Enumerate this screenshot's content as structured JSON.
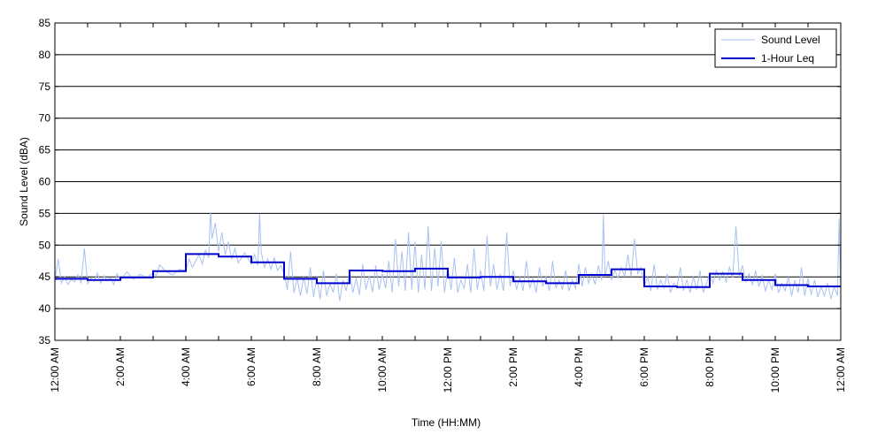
{
  "chart_data": {
    "type": "line",
    "title": "",
    "xlabel": "Time (HH:MM)",
    "ylabel": "Sound Level (dBA)",
    "xlim_hours": [
      0,
      24
    ],
    "ylim": [
      35,
      85
    ],
    "y_ticks": [
      35,
      40,
      45,
      50,
      55,
      60,
      65,
      70,
      75,
      80,
      85
    ],
    "x_ticks": [
      {
        "hour": 0,
        "label": "12:00 AM"
      },
      {
        "hour": 2,
        "label": "2:00 AM"
      },
      {
        "hour": 4,
        "label": "4:00 AM"
      },
      {
        "hour": 6,
        "label": "6:00 AM"
      },
      {
        "hour": 8,
        "label": "8:00 AM"
      },
      {
        "hour": 10,
        "label": "10:00 AM"
      },
      {
        "hour": 12,
        "label": "12:00 PM"
      },
      {
        "hour": 14,
        "label": "2:00 PM"
      },
      {
        "hour": 16,
        "label": "4:00 PM"
      },
      {
        "hour": 18,
        "label": "6:00 PM"
      },
      {
        "hour": 20,
        "label": "8:00 PM"
      },
      {
        "hour": 22,
        "label": "10:00 PM"
      },
      {
        "hour": 24,
        "label": "12:00 AM"
      }
    ],
    "minor_x_ticks_hours": [
      1,
      3,
      5,
      7,
      9,
      11,
      13,
      15,
      17,
      19,
      21,
      23
    ],
    "grid": "horizontal",
    "legend_position": "top-right",
    "series": [
      {
        "name": "Sound Level",
        "color": "#a9c1f2",
        "style": "thin",
        "points": [
          [
            0.0,
            44.5
          ],
          [
            0.1,
            47.8
          ],
          [
            0.2,
            44.0
          ],
          [
            0.3,
            45.0
          ],
          [
            0.4,
            43.8
          ],
          [
            0.5,
            44.6
          ],
          [
            0.6,
            44.2
          ],
          [
            0.7,
            45.3
          ],
          [
            0.8,
            44.0
          ],
          [
            0.9,
            49.5
          ],
          [
            1.0,
            43.9
          ],
          [
            1.1,
            44.8
          ],
          [
            1.2,
            44.3
          ],
          [
            1.3,
            45.6
          ],
          [
            1.4,
            44.0
          ],
          [
            1.5,
            45.2
          ],
          [
            1.6,
            44.4
          ],
          [
            1.7,
            44.9
          ],
          [
            1.8,
            43.8
          ],
          [
            1.9,
            45.5
          ],
          [
            2.0,
            44.5
          ],
          [
            2.2,
            45.8
          ],
          [
            2.4,
            44.6
          ],
          [
            2.6,
            45.4
          ],
          [
            2.8,
            44.9
          ],
          [
            3.0,
            45.6
          ],
          [
            3.1,
            45.2
          ],
          [
            3.2,
            46.9
          ],
          [
            3.4,
            45.8
          ],
          [
            3.6,
            45.3
          ],
          [
            3.8,
            46.2
          ],
          [
            4.0,
            46.0
          ],
          [
            4.1,
            47.8
          ],
          [
            4.2,
            46.5
          ],
          [
            4.4,
            48.5
          ],
          [
            4.5,
            47.0
          ],
          [
            4.6,
            49.2
          ],
          [
            4.7,
            48.0
          ],
          [
            4.75,
            55.2
          ],
          [
            4.8,
            51.0
          ],
          [
            4.9,
            53.5
          ],
          [
            5.0,
            49.0
          ],
          [
            5.1,
            52.0
          ],
          [
            5.2,
            48.5
          ],
          [
            5.3,
            50.5
          ],
          [
            5.4,
            47.8
          ],
          [
            5.5,
            49.5
          ],
          [
            5.6,
            47.2
          ],
          [
            5.8,
            48.8
          ],
          [
            6.0,
            47.0
          ],
          [
            6.1,
            48.5
          ],
          [
            6.2,
            46.8
          ],
          [
            6.25,
            54.9
          ],
          [
            6.3,
            49.0
          ],
          [
            6.4,
            46.5
          ],
          [
            6.5,
            47.8
          ],
          [
            6.6,
            46.2
          ],
          [
            6.7,
            48.0
          ],
          [
            6.8,
            46.0
          ],
          [
            6.9,
            46.8
          ],
          [
            7.0,
            45.5
          ],
          [
            7.1,
            43.0
          ],
          [
            7.2,
            49.0
          ],
          [
            7.3,
            42.5
          ],
          [
            7.4,
            44.8
          ],
          [
            7.5,
            42.0
          ],
          [
            7.6,
            45.0
          ],
          [
            7.7,
            42.3
          ],
          [
            7.8,
            46.5
          ],
          [
            7.9,
            41.8
          ],
          [
            8.0,
            45.0
          ],
          [
            8.1,
            41.5
          ],
          [
            8.2,
            46.0
          ],
          [
            8.3,
            42.0
          ],
          [
            8.4,
            44.0
          ],
          [
            8.5,
            42.5
          ],
          [
            8.6,
            45.5
          ],
          [
            8.7,
            41.2
          ],
          [
            8.8,
            44.5
          ],
          [
            8.9,
            42.8
          ],
          [
            9.0,
            46.0
          ],
          [
            9.1,
            42.5
          ],
          [
            9.2,
            44.8
          ],
          [
            9.3,
            42.2
          ],
          [
            9.4,
            47.0
          ],
          [
            9.5,
            43.0
          ],
          [
            9.6,
            45.2
          ],
          [
            9.7,
            42.6
          ],
          [
            9.8,
            46.8
          ],
          [
            9.9,
            43.0
          ],
          [
            10.0,
            45.5
          ],
          [
            10.1,
            43.2
          ],
          [
            10.2,
            47.5
          ],
          [
            10.3,
            42.5
          ],
          [
            10.4,
            51.0
          ],
          [
            10.5,
            43.5
          ],
          [
            10.6,
            49.0
          ],
          [
            10.7,
            42.8
          ],
          [
            10.8,
            52.0
          ],
          [
            10.9,
            43.0
          ],
          [
            11.0,
            50.5
          ],
          [
            11.1,
            42.5
          ],
          [
            11.2,
            48.5
          ],
          [
            11.3,
            43.0
          ],
          [
            11.4,
            53.0
          ],
          [
            11.5,
            42.8
          ],
          [
            11.6,
            49.5
          ],
          [
            11.7,
            43.5
          ],
          [
            11.8,
            50.5
          ],
          [
            11.9,
            42.5
          ],
          [
            12.0,
            46.5
          ],
          [
            12.1,
            43.0
          ],
          [
            12.2,
            48.0
          ],
          [
            12.3,
            42.5
          ],
          [
            12.4,
            44.5
          ],
          [
            12.5,
            43.2
          ],
          [
            12.6,
            47.0
          ],
          [
            12.7,
            42.5
          ],
          [
            12.8,
            49.5
          ],
          [
            12.9,
            43.0
          ],
          [
            13.0,
            46.0
          ],
          [
            13.1,
            42.8
          ],
          [
            13.2,
            51.5
          ],
          [
            13.3,
            43.5
          ],
          [
            13.4,
            47.0
          ],
          [
            13.5,
            43.0
          ],
          [
            13.6,
            45.5
          ],
          [
            13.7,
            42.8
          ],
          [
            13.8,
            52.0
          ],
          [
            13.9,
            43.5
          ],
          [
            14.0,
            46.0
          ],
          [
            14.1,
            43.0
          ],
          [
            14.2,
            45.0
          ],
          [
            14.3,
            42.8
          ],
          [
            14.4,
            47.5
          ],
          [
            14.5,
            43.2
          ],
          [
            14.6,
            44.8
          ],
          [
            14.7,
            42.5
          ],
          [
            14.8,
            46.5
          ],
          [
            14.9,
            43.5
          ],
          [
            15.0,
            45.0
          ],
          [
            15.1,
            42.8
          ],
          [
            15.2,
            47.5
          ],
          [
            15.3,
            43.2
          ],
          [
            15.4,
            44.5
          ],
          [
            15.5,
            43.0
          ],
          [
            15.6,
            46.0
          ],
          [
            15.7,
            42.8
          ],
          [
            15.8,
            44.5
          ],
          [
            15.9,
            43.2
          ],
          [
            16.0,
            47.0
          ],
          [
            16.1,
            43.5
          ],
          [
            16.2,
            46.5
          ],
          [
            16.3,
            44.0
          ],
          [
            16.4,
            45.5
          ],
          [
            16.5,
            43.8
          ],
          [
            16.6,
            46.8
          ],
          [
            16.7,
            44.5
          ],
          [
            16.75,
            54.8
          ],
          [
            16.8,
            45.0
          ],
          [
            16.9,
            47.5
          ],
          [
            17.0,
            44.5
          ],
          [
            17.1,
            46.0
          ],
          [
            17.2,
            44.8
          ],
          [
            17.3,
            46.5
          ],
          [
            17.4,
            45.0
          ],
          [
            17.5,
            48.5
          ],
          [
            17.6,
            45.0
          ],
          [
            17.7,
            51.0
          ],
          [
            17.8,
            45.5
          ],
          [
            17.9,
            46.5
          ],
          [
            18.0,
            43.5
          ],
          [
            18.1,
            45.0
          ],
          [
            18.2,
            42.8
          ],
          [
            18.3,
            47.0
          ],
          [
            18.4,
            43.0
          ],
          [
            18.5,
            44.5
          ],
          [
            18.6,
            43.2
          ],
          [
            18.7,
            45.5
          ],
          [
            18.8,
            42.5
          ],
          [
            18.9,
            44.0
          ],
          [
            19.0,
            43.5
          ],
          [
            19.1,
            46.5
          ],
          [
            19.2,
            42.8
          ],
          [
            19.3,
            44.5
          ],
          [
            19.4,
            42.5
          ],
          [
            19.5,
            45.0
          ],
          [
            19.6,
            43.0
          ],
          [
            19.7,
            46.0
          ],
          [
            19.8,
            42.5
          ],
          [
            19.9,
            44.0
          ],
          [
            20.0,
            45.5
          ],
          [
            20.1,
            44.0
          ],
          [
            20.2,
            46.0
          ],
          [
            20.3,
            44.5
          ],
          [
            20.4,
            45.8
          ],
          [
            20.5,
            44.2
          ],
          [
            20.6,
            46.5
          ],
          [
            20.7,
            44.8
          ],
          [
            20.8,
            53.0
          ],
          [
            20.9,
            45.0
          ],
          [
            21.0,
            46.8
          ],
          [
            21.1,
            44.2
          ],
          [
            21.2,
            45.5
          ],
          [
            21.3,
            43.8
          ],
          [
            21.4,
            46.0
          ],
          [
            21.5,
            43.5
          ],
          [
            21.6,
            45.2
          ],
          [
            21.7,
            42.8
          ],
          [
            21.8,
            44.5
          ],
          [
            21.9,
            43.0
          ],
          [
            22.0,
            45.5
          ],
          [
            22.1,
            42.5
          ],
          [
            22.2,
            44.0
          ],
          [
            22.3,
            42.8
          ],
          [
            22.4,
            45.0
          ],
          [
            22.5,
            42.0
          ],
          [
            22.6,
            44.5
          ],
          [
            22.7,
            42.5
          ],
          [
            22.8,
            46.5
          ],
          [
            22.9,
            42.0
          ],
          [
            23.0,
            44.8
          ],
          [
            23.1,
            42.2
          ],
          [
            23.2,
            44.5
          ],
          [
            23.3,
            41.8
          ],
          [
            23.4,
            43.5
          ],
          [
            23.5,
            42.0
          ],
          [
            23.6,
            44.0
          ],
          [
            23.7,
            41.5
          ],
          [
            23.8,
            43.5
          ],
          [
            23.9,
            42.0
          ],
          [
            23.95,
            54.2
          ],
          [
            24.0,
            43.0
          ]
        ]
      },
      {
        "name": "1-Hour Leq",
        "color": "#0000d0",
        "style": "step",
        "hourly_values": [
          44.7,
          44.5,
          44.9,
          45.9,
          48.6,
          48.2,
          47.3,
          44.7,
          44.0,
          46.0,
          45.9,
          46.3,
          44.9,
          45.0,
          44.3,
          44.0,
          45.3,
          46.2,
          43.5,
          43.4,
          45.5,
          44.5,
          43.7,
          43.5
        ]
      }
    ]
  }
}
